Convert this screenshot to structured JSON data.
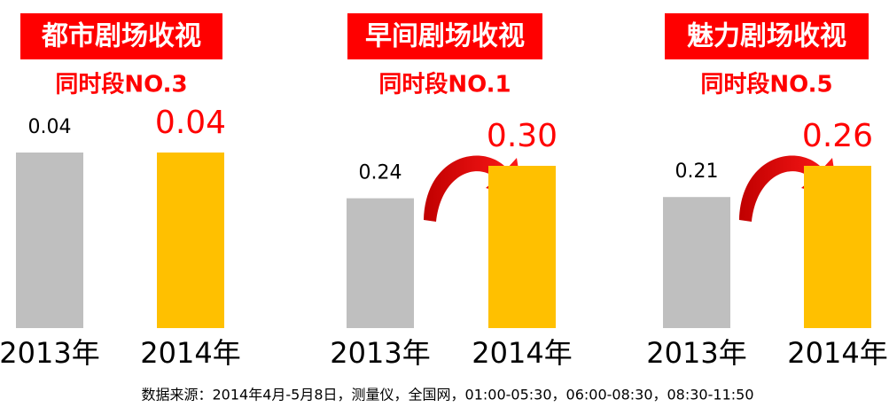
{
  "chart_data": [
    {
      "type": "bar",
      "title": "都市剧场收视",
      "subtitle": "同时段NO.3",
      "categories": [
        "2013年",
        "2014年"
      ],
      "values": [
        0.04,
        0.04
      ],
      "value_labels": [
        "0.04",
        "0.04"
      ],
      "colors": [
        "#bfbfbf",
        "#ffc000"
      ]
    },
    {
      "type": "bar",
      "title": "早间剧场收视",
      "subtitle": "同时段NO.1",
      "categories": [
        "2013年",
        "2014年"
      ],
      "values": [
        0.24,
        0.3
      ],
      "value_labels": [
        "0.24",
        "0.30"
      ],
      "colors": [
        "#bfbfbf",
        "#ffc000"
      ]
    },
    {
      "type": "bar",
      "title": "魅力剧场收视",
      "subtitle": "同时段NO.5",
      "categories": [
        "2013年",
        "2014年"
      ],
      "values": [
        0.21,
        0.26
      ],
      "value_labels": [
        "0.21",
        "0.26"
      ],
      "colors": [
        "#bfbfbf",
        "#ffc000"
      ]
    }
  ],
  "source": "数据来源：2014年4月-5月8日，测量仪，全国网，01:00-05:30，06:00-08:30，08:30-11:50"
}
